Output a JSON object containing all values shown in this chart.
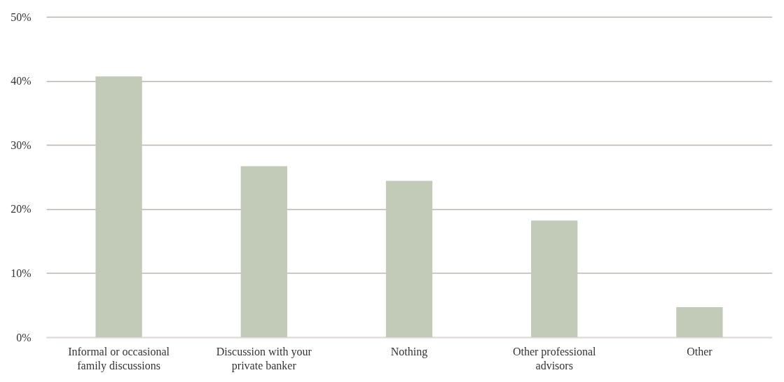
{
  "chart_data": {
    "type": "bar",
    "categories": [
      "Informal or occasional family discussions",
      "Discussion with your private banker",
      "Nothing",
      "Other professional advisors",
      "Other"
    ],
    "values": [
      40.7,
      26.7,
      24.4,
      18.2,
      4.7
    ],
    "color": "#c1cbb7",
    "ylim": [
      0,
      50
    ],
    "yticks": [
      {
        "value": 0,
        "label": "0%"
      },
      {
        "value": 10,
        "label": "10%"
      },
      {
        "value": 20,
        "label": "20%"
      },
      {
        "value": 30,
        "label": "30%"
      },
      {
        "value": 40,
        "label": "40%"
      },
      {
        "value": 50,
        "label": "50%"
      }
    ],
    "grid": "y"
  }
}
